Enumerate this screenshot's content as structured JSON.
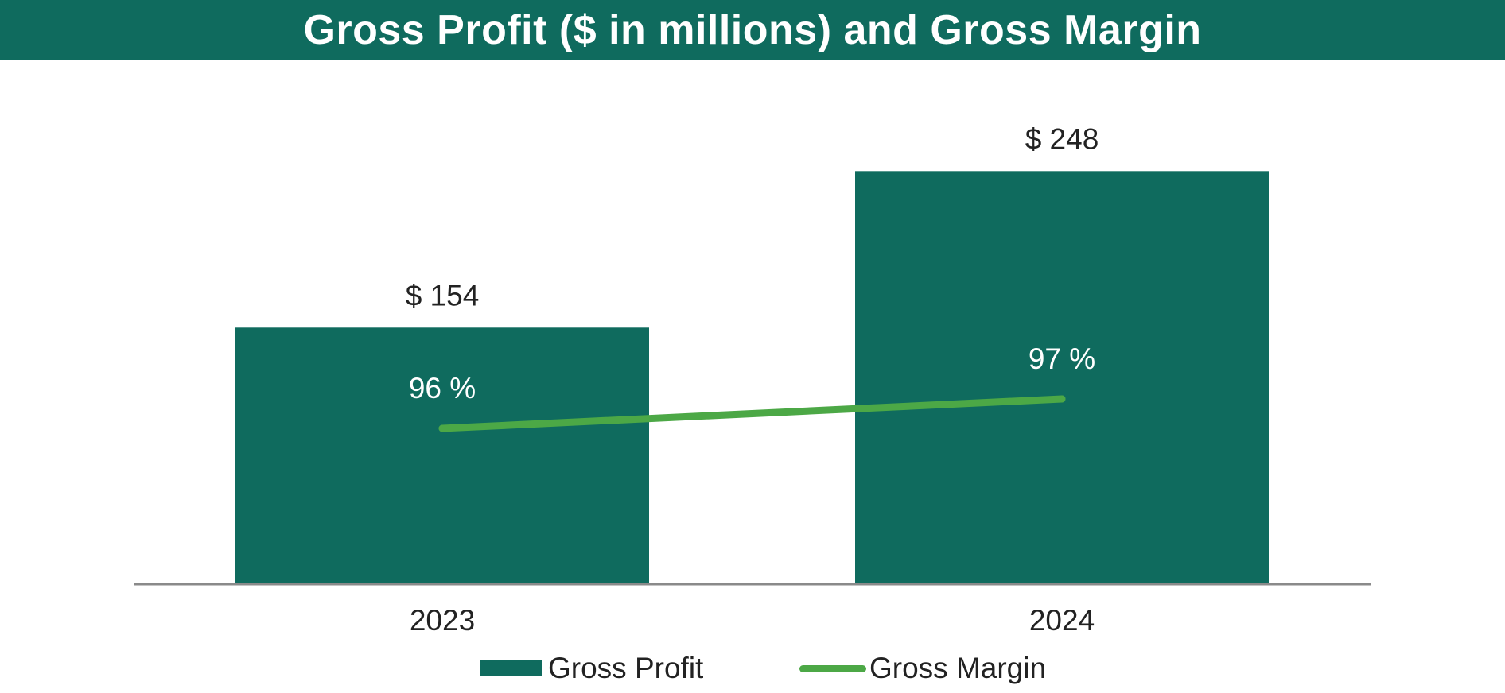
{
  "chart_data": {
    "type": "bar",
    "title": "Gross Profit ($ in millions) and Gross Margin",
    "categories": [
      "2023",
      "2024"
    ],
    "series": [
      {
        "name": "Gross Profit",
        "kind": "bar",
        "values": [
          154,
          248
        ],
        "labels": [
          "$ 154",
          "$ 248"
        ],
        "color": "#0f6b5e"
      },
      {
        "name": "Gross Margin",
        "kind": "line",
        "values": [
          96,
          97
        ],
        "labels": [
          "96 %",
          "97 %"
        ],
        "color": "#4ca846"
      }
    ],
    "xlabel": "",
    "ylabel": "",
    "ylim": [
      0,
      260
    ],
    "grid": false,
    "legend": "bottom-center",
    "colors": {
      "header": "#0f6b5e",
      "axis": "#8a8a8a",
      "text": "#222222",
      "inner_text": "#ffffff"
    }
  },
  "legend": {
    "items": [
      {
        "label": "Gross Profit",
        "swatch": "bar"
      },
      {
        "label": "Gross Margin",
        "swatch": "line"
      }
    ]
  }
}
